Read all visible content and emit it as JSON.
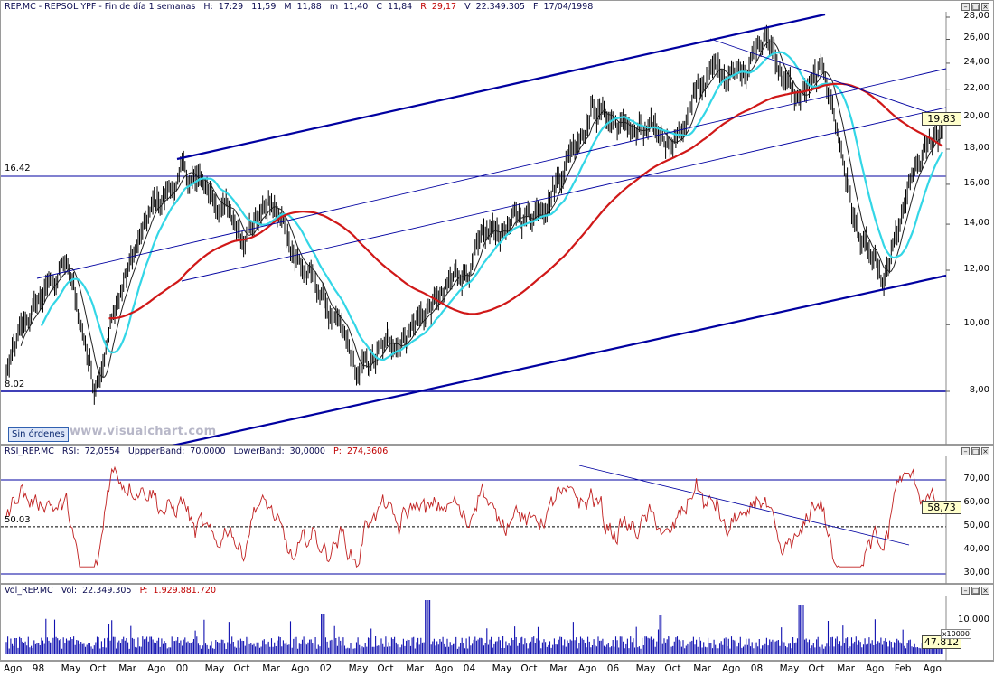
{
  "main": {
    "header": {
      "title": "REP.MC - REPSOL YPF - Fin de día 1 semanas",
      "h_label": "H:",
      "time": "17:29",
      "open": "11,59",
      "high_label": "M",
      "high": "11,88",
      "low_label": "m",
      "low": "11,40",
      "close_label": "C",
      "close": "11,84",
      "change_label": "R",
      "change": "29,17",
      "volume_label": "V",
      "volume": "22.349.305",
      "date_label": "F",
      "date": "17/04/1998"
    },
    "levels": {
      "upper": "16.42",
      "lower": "8.02"
    },
    "last_price": "19,83",
    "y_ticks": [
      "28,00",
      "26,00",
      "24,00",
      "22,00",
      "20,00",
      "18,00",
      "16,00",
      "14,00",
      "12,00",
      "10,00",
      "8,00"
    ],
    "orders_button": "Sin órdenes",
    "watermark": "www.visualchart.com"
  },
  "rsi": {
    "header": {
      "name": "RSI_REP.MC",
      "rsi_label": "RSI:",
      "rsi": "72,0554",
      "upper_label": "UppperBand:",
      "upper": "70,0000",
      "lower_label": "LowerBand:",
      "lower": "30,0000",
      "p_label": "P:",
      "p": "274,3606"
    },
    "level": "50.03",
    "last": "58,73",
    "y_ticks": [
      "70,00",
      "60,00",
      "50,00",
      "40,00",
      "30,00"
    ]
  },
  "vol": {
    "header": {
      "name": "Vol_REP.MC",
      "vol_label": "Vol:",
      "vol": "22.349.305",
      "p_label": "P:",
      "p": "1.929.881.720"
    },
    "last": "47.812",
    "y_tick": "10.000",
    "multiplier": "x10000"
  },
  "x_labels": [
    "Ago",
    "98",
    "May",
    "Oct",
    "Mar",
    "Ago",
    "00",
    "May",
    "Oct",
    "Mar",
    "Ago",
    "02",
    "May",
    "Oct",
    "Mar",
    "Ago",
    "04",
    "May",
    "Oct",
    "Mar",
    "Ago",
    "06",
    "May",
    "Oct",
    "Mar",
    "Ago",
    "08",
    "May",
    "Oct",
    "Mar",
    "Ago",
    "Feb",
    "Ago"
  ],
  "colors": {
    "price": "#000000",
    "ma_fast": "#202020",
    "ma_cyan": "#33d6e6",
    "ma_red": "#d01818",
    "channel": "#0000a0",
    "rsi": "#c02020",
    "volume": "#1010b0",
    "background": "#ffffff"
  },
  "chart_data": {
    "type": "line",
    "y_scale": "log",
    "ylim": [
      7,
      28
    ],
    "x": [
      "Ago 97",
      "98",
      "May 98",
      "Oct 98",
      "Mar 99",
      "Ago 99",
      "00",
      "May 00",
      "Oct 00",
      "Mar 01",
      "Ago 01",
      "02",
      "May 02",
      "Oct 02",
      "Mar 03",
      "Ago 03",
      "04",
      "May 04",
      "Oct 04",
      "Mar 05",
      "Ago 05",
      "06",
      "May 06",
      "Oct 06",
      "Mar 07",
      "Ago 07",
      "08",
      "May 08",
      "Oct 08",
      "Mar 09",
      "Ago 09",
      "Feb 10",
      "Ago 10"
    ],
    "series": [
      {
        "values": [
          8.5,
          10.5,
          12.3,
          8.2,
          11.5,
          14.5,
          16.5,
          15.5,
          13.8,
          15.0,
          12.5,
          10.5,
          8.3,
          9.2,
          10.2,
          11.0,
          12.5,
          13.8,
          14.5,
          17.0,
          21.0,
          19.5,
          18.5,
          19.0,
          23.0,
          24.0,
          26.0,
          21.0,
          23.0,
          14.0,
          11.0,
          16.0,
          19.5
        ]
      },
      {
        "values": [
          null,
          null,
          null,
          null,
          null,
          null,
          null,
          null,
          null,
          null,
          null,
          null,
          null,
          null,
          null,
          null,
          null,
          null,
          null,
          null,
          null,
          null,
          null,
          null,
          null,
          null,
          null,
          null,
          null,
          null,
          null,
          null,
          null
        ]
      }
    ]
  }
}
